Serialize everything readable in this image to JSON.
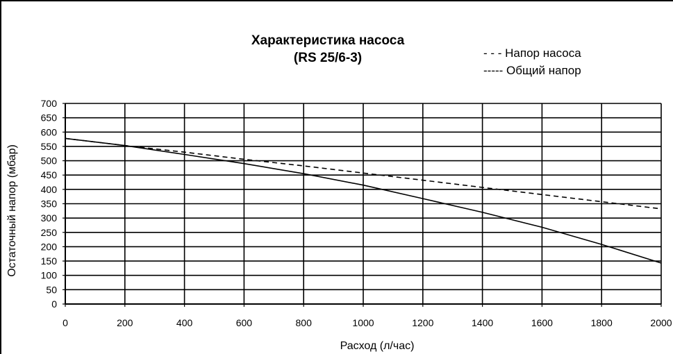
{
  "chart_data": {
    "type": "line",
    "title": "Характеристика насоса",
    "subtitle": "(RS 25/6-3)",
    "xlabel": "Расход (л/час)",
    "ylabel": "Остаточный напор (мбар)",
    "xlim": [
      0,
      2000
    ],
    "ylim": [
      0,
      700
    ],
    "x_ticks": [
      0,
      200,
      400,
      600,
      800,
      1000,
      1200,
      1400,
      1600,
      1800,
      2000
    ],
    "y_ticks": [
      0,
      50,
      100,
      150,
      200,
      250,
      300,
      350,
      400,
      450,
      500,
      550,
      600,
      650,
      700
    ],
    "grid": true,
    "legend": "top-right",
    "legend_entries": [
      "- - - Напор насоса",
      "----- Общий напор"
    ],
    "series": [
      {
        "name": "Напор насоса",
        "style": "dashed",
        "color": "#000000",
        "x": [
          0,
          200,
          400,
          600,
          800,
          1000,
          1200,
          1400,
          1600,
          1800,
          2000
        ],
        "y": [
          578,
          553,
          530,
          505,
          482,
          457,
          432,
          407,
          382,
          357,
          332
        ]
      },
      {
        "name": "Общий напор",
        "style": "solid",
        "color": "#000000",
        "x": [
          0,
          200,
          400,
          600,
          800,
          1000,
          1200,
          1400,
          1600,
          1800,
          2000
        ],
        "y": [
          578,
          553,
          522,
          490,
          455,
          415,
          368,
          320,
          268,
          208,
          143
        ]
      }
    ]
  }
}
